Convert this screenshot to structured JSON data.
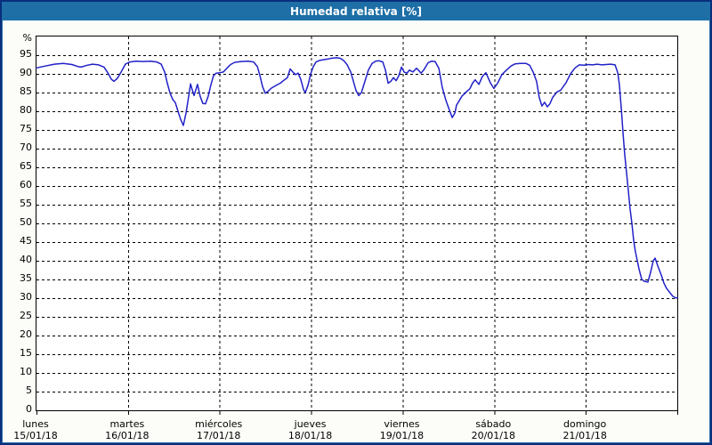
{
  "window": {
    "title": "Humedad relativa [%]"
  },
  "colors": {
    "titlebar": "#1d6fa6",
    "titlebar_text": "#ffffff",
    "border": "#0a2f7c",
    "border_inner": "#2e6da4",
    "bg": "#fcfcf8",
    "plot_bg": "#ffffff",
    "axis": "#000000",
    "grid": "#000000",
    "text": "#000000",
    "line": "#2121c8"
  },
  "chart_data": {
    "type": "line",
    "title": "Humedad relativa [%]",
    "ylabel": "%",
    "xlabel": "",
    "ylim": [
      0,
      100
    ],
    "y_tick_step": 5,
    "y_tick_labels": [
      "0",
      "5",
      "10",
      "15",
      "20",
      "25",
      "30",
      "35",
      "40",
      "45",
      "50",
      "55",
      "60",
      "65",
      "70",
      "75",
      "80",
      "85",
      "90",
      "95"
    ],
    "xlim_hours": [
      0,
      168
    ],
    "x_ticks": [
      {
        "day": "lunes",
        "date": "15/01/18",
        "hour": 0
      },
      {
        "day": "martes",
        "date": "16/01/18",
        "hour": 24
      },
      {
        "day": "miércoles",
        "date": "17/01/18",
        "hour": 48
      },
      {
        "day": "jueves",
        "date": "18/01/18",
        "hour": 72
      },
      {
        "day": "viernes",
        "date": "19/01/18",
        "hour": 96
      },
      {
        "day": "sábado",
        "date": "20/01/18",
        "hour": 120
      },
      {
        "day": "domingo",
        "date": "21/01/18",
        "hour": 144
      }
    ],
    "grid": "dashed",
    "legend": "none",
    "series": [
      {
        "name": "Humedad relativa [%]",
        "color": "#2121c8",
        "points_hour_value": [
          [
            0,
            91.6
          ],
          [
            2.3,
            92.1
          ],
          [
            4.7,
            92.6
          ],
          [
            7,
            92.8
          ],
          [
            9.3,
            92.5
          ],
          [
            10.7,
            92
          ],
          [
            11.7,
            91.8
          ],
          [
            13.3,
            92.3
          ],
          [
            14.7,
            92.6
          ],
          [
            16.3,
            92.4
          ],
          [
            17.7,
            91.8
          ],
          [
            18.7,
            90.3
          ],
          [
            19.6,
            88.6
          ],
          [
            20.3,
            88
          ],
          [
            21.2,
            88.8
          ],
          [
            22.2,
            90.5
          ],
          [
            23.3,
            92.6
          ],
          [
            24.5,
            93.2
          ],
          [
            26.1,
            93.4
          ],
          [
            28,
            93.3
          ],
          [
            29.9,
            93.4
          ],
          [
            31.5,
            93.2
          ],
          [
            32.7,
            92.6
          ],
          [
            33.6,
            90.5
          ],
          [
            34.3,
            87.5
          ],
          [
            35,
            84.9
          ],
          [
            35.7,
            83.2
          ],
          [
            36.4,
            82.3
          ],
          [
            37.1,
            80
          ],
          [
            37.8,
            77.8
          ],
          [
            38.5,
            76.2
          ],
          [
            39.2,
            79.5
          ],
          [
            39.9,
            84
          ],
          [
            40.4,
            87.3
          ],
          [
            40.8,
            85.8
          ],
          [
            41.3,
            84.2
          ],
          [
            41.8,
            85.8
          ],
          [
            42.2,
            87.2
          ],
          [
            42.9,
            84
          ],
          [
            43.6,
            82.1
          ],
          [
            44.3,
            82
          ],
          [
            45,
            84
          ],
          [
            45.7,
            87
          ],
          [
            46.4,
            89.5
          ],
          [
            47.1,
            90.2
          ],
          [
            48.1,
            90.3
          ],
          [
            49,
            90.5
          ],
          [
            49.9,
            91.5
          ],
          [
            50.9,
            92.5
          ],
          [
            52,
            93.1
          ],
          [
            53.7,
            93.3
          ],
          [
            55.5,
            93.4
          ],
          [
            56.9,
            93.2
          ],
          [
            57.9,
            92
          ],
          [
            58.6,
            89.5
          ],
          [
            59.3,
            86.5
          ],
          [
            60,
            84.8
          ],
          [
            60.7,
            85.3
          ],
          [
            61.6,
            86.2
          ],
          [
            62.8,
            86.9
          ],
          [
            63.9,
            87.5
          ],
          [
            64.9,
            88.3
          ],
          [
            65.8,
            89
          ],
          [
            66.5,
            91.3
          ],
          [
            67.2,
            90.5
          ],
          [
            67.9,
            89.8
          ],
          [
            68.6,
            90.2
          ],
          [
            69.3,
            88.5
          ],
          [
            70,
            85.8
          ],
          [
            70.5,
            85
          ],
          [
            71.2,
            87
          ],
          [
            71.9,
            90
          ],
          [
            72.6,
            92
          ],
          [
            73.3,
            93.2
          ],
          [
            74.2,
            93.6
          ],
          [
            75.4,
            93.8
          ],
          [
            76.5,
            94
          ],
          [
            77.5,
            94.2
          ],
          [
            78.6,
            94.3
          ],
          [
            79.6,
            94.2
          ],
          [
            80.5,
            93.6
          ],
          [
            81.4,
            92.5
          ],
          [
            82.4,
            90.5
          ],
          [
            83.1,
            88
          ],
          [
            83.8,
            85.5
          ],
          [
            84.5,
            84.2
          ],
          [
            85.2,
            85
          ],
          [
            86.1,
            88
          ],
          [
            87,
            91
          ],
          [
            88,
            92.8
          ],
          [
            88.9,
            93.4
          ],
          [
            89.8,
            93.5
          ],
          [
            90.8,
            93.2
          ],
          [
            91.5,
            91
          ],
          [
            92.2,
            87.5
          ],
          [
            92.9,
            88
          ],
          [
            93.6,
            89
          ],
          [
            94.3,
            88.2
          ],
          [
            95,
            89.5
          ],
          [
            95.7,
            91.8
          ],
          [
            96.4,
            90.5
          ],
          [
            97.1,
            90.2
          ],
          [
            97.8,
            91
          ],
          [
            98.7,
            90.5
          ],
          [
            99.6,
            91.5
          ],
          [
            100.3,
            90.8
          ],
          [
            100.8,
            90.2
          ],
          [
            101.5,
            91
          ],
          [
            102.7,
            93
          ],
          [
            103.6,
            93.4
          ],
          [
            104.5,
            93.3
          ],
          [
            105.5,
            91.5
          ],
          [
            106.4,
            86.3
          ],
          [
            107.3,
            83
          ],
          [
            108,
            81
          ],
          [
            109,
            78.3
          ],
          [
            109.7,
            79.5
          ],
          [
            110.1,
            81.6
          ],
          [
            110.8,
            82.8
          ],
          [
            111.5,
            84
          ],
          [
            112.7,
            85.2
          ],
          [
            113.6,
            86
          ],
          [
            114.3,
            87.5
          ],
          [
            115,
            88.4
          ],
          [
            116,
            87.2
          ],
          [
            116.9,
            89.3
          ],
          [
            117.8,
            90.3
          ],
          [
            119,
            87.6
          ],
          [
            119.9,
            86.1
          ],
          [
            120.9,
            87.5
          ],
          [
            122,
            89.8
          ],
          [
            123.2,
            91
          ],
          [
            124.4,
            92.1
          ],
          [
            125.5,
            92.7
          ],
          [
            126.9,
            92.8
          ],
          [
            128.3,
            92.8
          ],
          [
            129.3,
            92.3
          ],
          [
            130.2,
            90.5
          ],
          [
            131.1,
            88
          ],
          [
            131.8,
            83.7
          ],
          [
            132.5,
            81.4
          ],
          [
            133.2,
            82.4
          ],
          [
            133.9,
            81.2
          ],
          [
            134.6,
            82
          ],
          [
            135.3,
            83.7
          ],
          [
            136.5,
            85.2
          ],
          [
            137.4,
            85.6
          ],
          [
            138.8,
            87.6
          ],
          [
            140,
            90
          ],
          [
            141.2,
            91.6
          ],
          [
            142.3,
            92.4
          ],
          [
            143.5,
            92.3
          ],
          [
            144.7,
            92.5
          ],
          [
            145.8,
            92.4
          ],
          [
            147,
            92.6
          ],
          [
            148.2,
            92.4
          ],
          [
            149.3,
            92.5
          ],
          [
            150.5,
            92.6
          ],
          [
            151.7,
            92.4
          ],
          [
            152.4,
            90.3
          ],
          [
            152.8,
            87.2
          ],
          [
            153.3,
            81
          ],
          [
            153.8,
            74
          ],
          [
            154.2,
            68.5
          ],
          [
            154.7,
            63.5
          ],
          [
            155.2,
            58.5
          ],
          [
            155.6,
            54
          ],
          [
            156.1,
            50
          ],
          [
            156.6,
            45.2
          ],
          [
            157,
            42.5
          ],
          [
            157.5,
            40.1
          ],
          [
            158,
            37.7
          ],
          [
            158.7,
            35
          ],
          [
            159.4,
            34.5
          ],
          [
            160.3,
            34.3
          ],
          [
            161,
            36.9
          ],
          [
            161.7,
            40
          ],
          [
            162.2,
            40.7
          ],
          [
            162.9,
            38.6
          ],
          [
            163.8,
            36.2
          ],
          [
            164.5,
            34
          ],
          [
            165.2,
            32.6
          ],
          [
            166.1,
            31.4
          ],
          [
            166.8,
            30.5
          ],
          [
            167.5,
            30.1
          ],
          [
            168,
            30.1
          ]
        ]
      }
    ]
  }
}
